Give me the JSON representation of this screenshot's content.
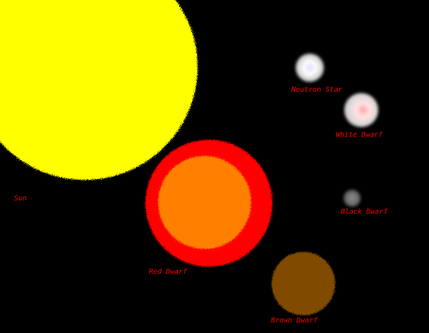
{
  "stars": {
    "sun": {
      "label": "Sun",
      "color": "#ffff00"
    },
    "red_dwarf": {
      "label": "Red Dwarf",
      "outer_color": "#ff0000",
      "inner_color": "#ff8000"
    },
    "brown_dwarf": {
      "label": "Brown Dwarf",
      "color": "#804c00"
    },
    "neutron_star": {
      "label": "Neutron Star",
      "color": "#ffffff"
    },
    "white_dwarf": {
      "label": "White Dwarf",
      "color": "#ffd9d9"
    },
    "black_dwarf": {
      "label": "Black Dwarf",
      "color": "#8a8a8a"
    }
  },
  "label_color": "#ff0000",
  "background_color": "#000000"
}
